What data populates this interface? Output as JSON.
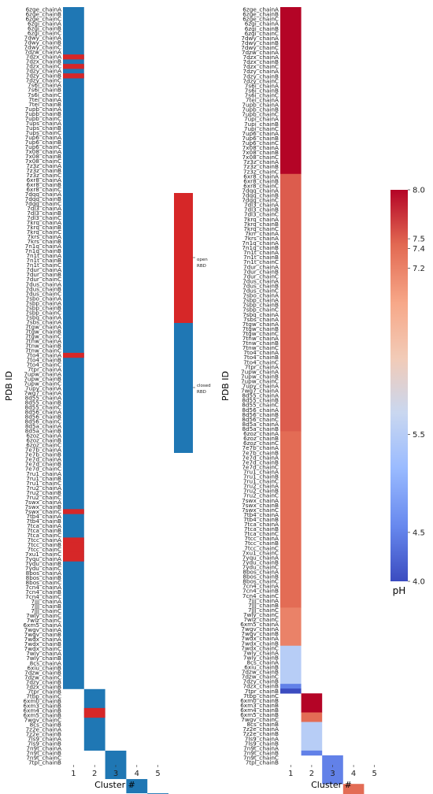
{
  "colors": {
    "open": "#d62728",
    "closed": "#1f77b4",
    "ph_scale": [
      "#3b4cc0",
      "#6788ee",
      "#9abbff",
      "#c9d7f0",
      "#f2cbb7",
      "#f7a889",
      "#e26952",
      "#b40426"
    ]
  },
  "chart_data": [
    {
      "type": "heatmap",
      "panel": "left",
      "xlabel": "Cluster #",
      "ylabel": "PDB ID",
      "x": [
        1,
        2,
        3,
        4,
        5
      ],
      "y_labels": [
        "6zge_chainA",
        "6zge_chainB",
        "6zge_chainC",
        "6zgi_chainA",
        "6zgi_chainB",
        "6zgi_chainC",
        "7dwy_chainA",
        "7dwy_chainB",
        "7dwy_chainC",
        "7dzw_chainA",
        "7dzx_chainA",
        "7dzx_chainB",
        "7dzx_chainC",
        "7dzy_chainA",
        "7dzy_chainB",
        "7dzy_chainC",
        "7s6i_chainA",
        "7s6i_chainB",
        "7s6i_chainC",
        "7tei_chainA",
        "7tei_chainB",
        "7upb_chainA",
        "7upb_chainB",
        "7upb_chainC",
        "7ups_chainA",
        "7ups_chainB",
        "7ups_chainC",
        "7up6_chainA",
        "7up6_chainB",
        "7up6_chainC",
        "7x08_chainA",
        "7x08_chainB",
        "7x08_chainC",
        "7z3z_chainA",
        "7z3z_chainB",
        "7z3z_chainC",
        "6xr8_chainA",
        "6xr8_chainB",
        "6xr8_chainC",
        "7dqq_chainA",
        "7dqq_chainB",
        "7dqq_chainC",
        "7dl3_chainA",
        "7dl3_chainB",
        "7dl3_chainC",
        "7krq_chainA",
        "7krq_chainB",
        "7krq_chainC",
        "7krs_chainA",
        "7krs_chainB",
        "7n1q_chainA",
        "7n1q_chainB",
        "7n1t_chainA",
        "7n1t_chainB",
        "7n1t_chainC",
        "7dur_chainA",
        "7dur_chainB",
        "7dur_chainC",
        "7dus_chainA",
        "7dus_chainB",
        "7dus_chainC",
        "7sbo_chainA",
        "7sbp_chainA",
        "7sbp_chainB",
        "7sbp_chainC",
        "7sbq_chainA",
        "7sbs_chainA",
        "7tgw_chainA",
        "7tgw_chainB",
        "7tgw_chainC",
        "7tnw_chainA",
        "7tnw_chainB",
        "7tnw_chainC",
        "7to4_chainA",
        "7to4_chainB",
        "7to4_chainC",
        "7tpr_chainA",
        "7upw_chainA",
        "7upw_chainB",
        "7upw_chainC",
        "7upy_chainA",
        "7wg7_chainA",
        "8d55_chainA",
        "8d55_chainB",
        "8d55_chainC",
        "8d56_chainA",
        "8d56_chainB",
        "8d56_chainC",
        "8d5a_chainA",
        "8d5a_chainB",
        "6zoz_chainA",
        "6zoz_chainB",
        "6zoz_chainC",
        "7e7b_chainA",
        "7e7b_chainB",
        "7e7d_chainA",
        "7e7d_chainB",
        "7e7d_chainC",
        "7ru1_chainA",
        "7ru1_chainB",
        "7ru1_chainC",
        "7ru2_chainA",
        "7ru2_chainB",
        "7ru2_chainC",
        "7swx_chainA",
        "7swx_chainB",
        "7swx_chainC",
        "7tb4_chainA",
        "7tb4_chainB",
        "7tca_chainA",
        "7tca_chainB",
        "7tca_chainC",
        "7tcc_chainA",
        "7tcc_chainB",
        "7tcc_chainC",
        "7xu1_chainC",
        "7yqu_chainA",
        "7ydu_chainB",
        "7ydu_chainC",
        "8bos_chainA",
        "8bos_chainB",
        "8bos_chainC",
        "7cn4_chainA",
        "7cn4_chainB",
        "7cn4_chainC",
        "7jjj_chainA",
        "7jjj_chainB",
        "7jjj_chainC",
        "7wly_chainC",
        "7wlz_chainC",
        "6xm5_chainA",
        "7wgv_chainA",
        "7wgv_chainB",
        "7wdx_chainA",
        "7wdx_chainB",
        "7wdx_chainC",
        "7wly_chainA",
        "7wly_chainB",
        "8cs_chainA",
        "6xiu_chainB",
        "7dzw_chainB",
        "7dzw_chainC",
        "7dzy_chainB",
        "7dzx_chainB",
        "7tpr_chainB",
        "7tbp_chainC",
        "6xm0_chainB",
        "6xm3_chainB",
        "6xm4_chainB",
        "6xm5_chainB",
        "7wgv_chainC",
        "8cs_chainB",
        "7z2e_chainA",
        "7z2e_chainB",
        "7ls9_chainA",
        "7ls9_chainB",
        "7n9t_chainA",
        "7n9t_chainB",
        "7n9t_chainC",
        "7tpl_chainB"
      ],
      "legend": {
        "entries": [
          "open RBD",
          "closed RBD"
        ]
      },
      "clusters": [
        {
          "x": 1,
          "y_start": 0,
          "rows": 144
        },
        {
          "x": 2,
          "y_start": 144,
          "rows": 13
        },
        {
          "x": 3,
          "y_start": 157,
          "rows": 6
        },
        {
          "x": 4,
          "y_start": 163,
          "rows": 3
        },
        {
          "x": 5,
          "y_start": 166,
          "rows": 1
        }
      ],
      "open_rows": [
        10,
        12,
        14,
        73,
        106,
        112,
        113,
        114,
        115,
        116,
        148,
        149
      ]
    },
    {
      "type": "heatmap",
      "panel": "right",
      "xlabel": "Cluster #",
      "ylabel": "PDB ID",
      "x": [
        1,
        2,
        3,
        4,
        5
      ],
      "y_labels": [
        "6zge_chainA",
        "6zge_chainB",
        "6zge_chainC",
        "6zgi_chainA",
        "6zgi_chainB",
        "6zgi_chainC",
        "7dwy_chainA",
        "7dwy_chainB",
        "7dwy_chainC",
        "7dzw_chainA",
        "7dzx_chainA",
        "7dzx_chainB",
        "7dzx_chainC",
        "7dzy_chainA",
        "7dzy_chainB",
        "7dzy_chainC",
        "7s6i_chainA",
        "7s6i_chainB",
        "7s6i_chainC",
        "7tei_chainA",
        "7upb_chainA",
        "7upb_chainB",
        "7upb_chainC",
        "7upi_chainA",
        "7upi_chainB",
        "7upi_chainC",
        "7up6_chainA",
        "7up6_chainB",
        "7up6_chainC",
        "7x08_chainA",
        "7x08_chainB",
        "7x08_chainC",
        "7z3z_chainA",
        "7z3z_chainB",
        "7z3z_chainC",
        "6xr8_chainA",
        "6xr8_chainB",
        "6xr8_chainC",
        "7dqq_chainA",
        "7dqq_chainB",
        "7dqq_chainC",
        "7dl3_chainA",
        "7dl3_chainB",
        "7dl3_chainC",
        "7krq_chainA",
        "7krq_chainB",
        "7krq_chainC",
        "7krr_chainA",
        "7krs_chainA",
        "7n1q_chainA",
        "7n1q_chainB",
        "7n1t_chainA",
        "7n1t_chainB",
        "7n1t_chainC",
        "7dur_chainA",
        "7dur_chainB",
        "7dur_chainC",
        "7dus_chainA",
        "7dus_chainB",
        "7dus_chainC",
        "7sbo_chainA",
        "7sbp_chainA",
        "7sbp_chainB",
        "7sbp_chainC",
        "7sbq_chainA",
        "7sbs_chainA",
        "7tgw_chainA",
        "7tgw_chainB",
        "7tgw_chainC",
        "7tnw_chainA",
        "7tnw_chainB",
        "7tnw_chainC",
        "7to4_chainA",
        "7to4_chainB",
        "7to4_chainC",
        "7tpr_chainA",
        "7upw_chainA",
        "7upw_chainB",
        "7upw_chainC",
        "7upy_chainA",
        "7wg7_chainA",
        "8d55_chainA",
        "8d55_chainB",
        "8d55_chainC",
        "8d56_chainA",
        "8d56_chainB",
        "8d56_chainC",
        "8d5a_chainA",
        "8d5a_chainB",
        "6zoz_chainA",
        "6zoz_chainB",
        "6zoz_chainC",
        "7e7b_chainA",
        "7e7b_chainB",
        "7e7d_chainA",
        "7e7d_chainB",
        "7e7d_chainC",
        "7ru1_chainA",
        "7ru1_chainB",
        "7ru1_chainC",
        "7ru2_chainA",
        "7ru2_chainB",
        "7ru2_chainC",
        "7swx_chainA",
        "7swx_chainB",
        "7swx_chainC",
        "7tb4_chainA",
        "7tb4_chainB",
        "7tca_chainA",
        "7tca_chainB",
        "7tca_chainC",
        "7tcc_chainA",
        "7tcc_chainB",
        "7tcc_chainC",
        "7xu1_chainC",
        "7yqu_chainA",
        "7ydu_chainB",
        "7ydu_chainC",
        "8bos_chainA",
        "8bos_chainB",
        "8bos_chainC",
        "7cn4_chainA",
        "7cn4_chainB",
        "7cn4_chainC",
        "7jjj_chainA",
        "7jjj_chainB",
        "7jjj_chainC",
        "7wly_chainC",
        "7wlz_chainC",
        "6xm5_chainA",
        "7wgv_chainA",
        "7wgv_chainB",
        "7wdx_chainA",
        "7wdx_chainB",
        "7wdx_chainC",
        "7wly_chainA",
        "7wly_chainB",
        "8cs_chainA",
        "6xiu_chainB",
        "7dzw_chainB",
        "7dzw_chainC",
        "7dzy_chainB",
        "7dzx_chainB",
        "7tpr_chainB",
        "7tbp_chainC",
        "6xm0_chainB",
        "6xm3_chainB",
        "6xm4_chainB",
        "6xm5_chainB",
        "7wgv_chainC",
        "8cs_chainB",
        "7z2e_chainA",
        "7z2e_chainB",
        "7ls9_chainA",
        "7ls9_chainB",
        "7n9t_chainA",
        "7n9t_chainB",
        "7n9t_chainC",
        "7tpl_chainB"
      ],
      "colorbar": {
        "label": "pH",
        "min": 4.0,
        "max": 8.0,
        "ticks": [
          4.0,
          4.5,
          5.5,
          7.2,
          7.4,
          7.5,
          8.0
        ]
      },
      "blocks": [
        {
          "x": 1,
          "y_start": 0,
          "rows": 35,
          "value": 8.0
        },
        {
          "x": 1,
          "y_start": 35,
          "rows": 54,
          "value": 7.5
        },
        {
          "x": 1,
          "y_start": 89,
          "rows": 37,
          "value": 7.4
        },
        {
          "x": 1,
          "y_start": 126,
          "rows": 8,
          "value": 7.2
        },
        {
          "x": 1,
          "y_start": 134,
          "rows": 8,
          "value": 5.5
        },
        {
          "x": 1,
          "y_start": 142,
          "rows": 1,
          "value": 4.5
        },
        {
          "x": 1,
          "y_start": 143,
          "rows": 1,
          "value": 4.0
        },
        {
          "x": 2,
          "y_start": 144,
          "rows": 4,
          "value": 8.0
        },
        {
          "x": 2,
          "y_start": 148,
          "rows": 2,
          "value": 7.4
        },
        {
          "x": 2,
          "y_start": 150,
          "rows": 6,
          "value": 5.5
        },
        {
          "x": 2,
          "y_start": 156,
          "rows": 1,
          "value": 4.5
        },
        {
          "x": 3,
          "y_start": 157,
          "rows": 6,
          "value": 4.5
        },
        {
          "x": 4,
          "y_start": 163,
          "rows": 3,
          "value": 7.4
        },
        {
          "x": 5,
          "y_start": 166,
          "rows": 1,
          "value": 8.0
        }
      ]
    }
  ]
}
